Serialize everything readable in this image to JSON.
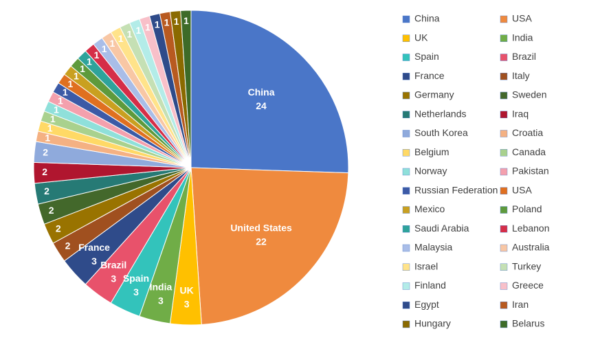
{
  "chart_data": {
    "type": "pie",
    "categories": [
      "China",
      "USA",
      "UK",
      "India",
      "Spain",
      "Brazil",
      "France",
      "Italy",
      "Germany",
      "Sweden",
      "Netherlands",
      "Iraq",
      "South Korea",
      "Croatia",
      "Belgium",
      "Canada",
      "Norway",
      "Pakistan",
      "Russian Federation",
      "USA",
      "Mexico",
      "Poland",
      "Saudi Arabia",
      "Lebanon",
      "Malaysia",
      "Australia",
      "Israel",
      "Turkey",
      "Finland",
      "Greece",
      "Egypt",
      "Iran",
      "Hungary",
      "Belarus"
    ],
    "slice_names": [
      "China",
      "United States",
      "UK",
      "India",
      "Spain",
      "Brazil",
      "France",
      null,
      null,
      null,
      null,
      null,
      null,
      null,
      null,
      null,
      null,
      null,
      null,
      null,
      null,
      null,
      null,
      null,
      null,
      null,
      null,
      null,
      null,
      null,
      null,
      null,
      null,
      null
    ],
    "values": [
      24,
      22,
      3,
      3,
      3,
      3,
      3,
      2,
      2,
      2,
      2,
      2,
      2,
      1,
      1,
      1,
      1,
      1,
      1,
      1,
      1,
      1,
      1,
      1,
      1,
      1,
      1,
      1,
      1,
      1,
      1,
      1,
      1,
      1
    ],
    "colors": [
      "#4a76c8",
      "#ef8a3e",
      "#ffc000",
      "#70ad47",
      "#33c3bb",
      "#e8526b",
      "#2f4b8a",
      "#a0501f",
      "#997300",
      "#43682b",
      "#267a75",
      "#b0162f",
      "#8faadc",
      "#f4b183",
      "#ffd966",
      "#a9d18e",
      "#8fe0da",
      "#f4a0ad",
      "#3c5aa6",
      "#e07020",
      "#c9a020",
      "#5e9a3c",
      "#2ea39b",
      "#d52e48",
      "#a9bde8",
      "#f8c7a5",
      "#ffe38a",
      "#c5e0b4",
      "#b3ece8",
      "#f8c0c9",
      "#2f4b8a",
      "#b85a20",
      "#8a6a00",
      "#3d6b28"
    ],
    "legend": "right"
  }
}
